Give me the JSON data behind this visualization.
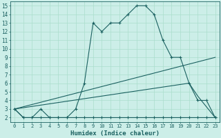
{
  "title": "",
  "xlabel": "Humidex (Indice chaleur)",
  "ylabel": "",
  "bg_color": "#cceee8",
  "line_color": "#1a6060",
  "grid_color": "#aaddcc",
  "xlim": [
    -0.5,
    23.5
  ],
  "ylim": [
    1.5,
    15.5
  ],
  "xticks": [
    0,
    1,
    2,
    3,
    4,
    5,
    6,
    7,
    8,
    9,
    10,
    11,
    12,
    13,
    14,
    15,
    16,
    17,
    18,
    19,
    20,
    21,
    22,
    23
  ],
  "yticks": [
    2,
    3,
    4,
    5,
    6,
    7,
    8,
    9,
    10,
    11,
    12,
    13,
    14,
    15
  ],
  "line1_x": [
    0,
    1,
    2,
    3,
    4,
    5,
    6,
    7,
    8,
    9,
    10,
    11,
    12,
    13,
    14,
    15,
    16,
    17,
    18,
    19,
    20,
    21,
    22,
    23
  ],
  "line1_y": [
    3,
    2,
    2,
    3,
    2,
    2,
    2,
    3,
    6,
    13,
    12,
    13,
    13,
    14,
    15,
    15,
    14,
    11,
    9,
    9,
    6,
    4,
    4,
    2
  ],
  "line2_x": [
    0,
    1,
    2,
    3,
    4,
    5,
    6,
    7,
    8,
    9,
    10,
    11,
    12,
    13,
    14,
    15,
    16,
    17,
    18,
    19,
    20,
    21,
    22,
    23
  ],
  "line2_y": [
    3,
    2,
    2,
    2,
    2,
    2,
    2,
    2,
    2,
    2,
    2,
    2,
    2,
    2,
    2,
    2,
    2,
    2,
    2,
    2,
    2,
    2,
    2,
    2
  ],
  "line3_x": [
    0,
    23
  ],
  "line3_y": [
    3,
    9
  ],
  "line4_x": [
    0,
    20,
    21,
    23
  ],
  "line4_y": [
    3,
    6,
    4.5,
    2
  ]
}
